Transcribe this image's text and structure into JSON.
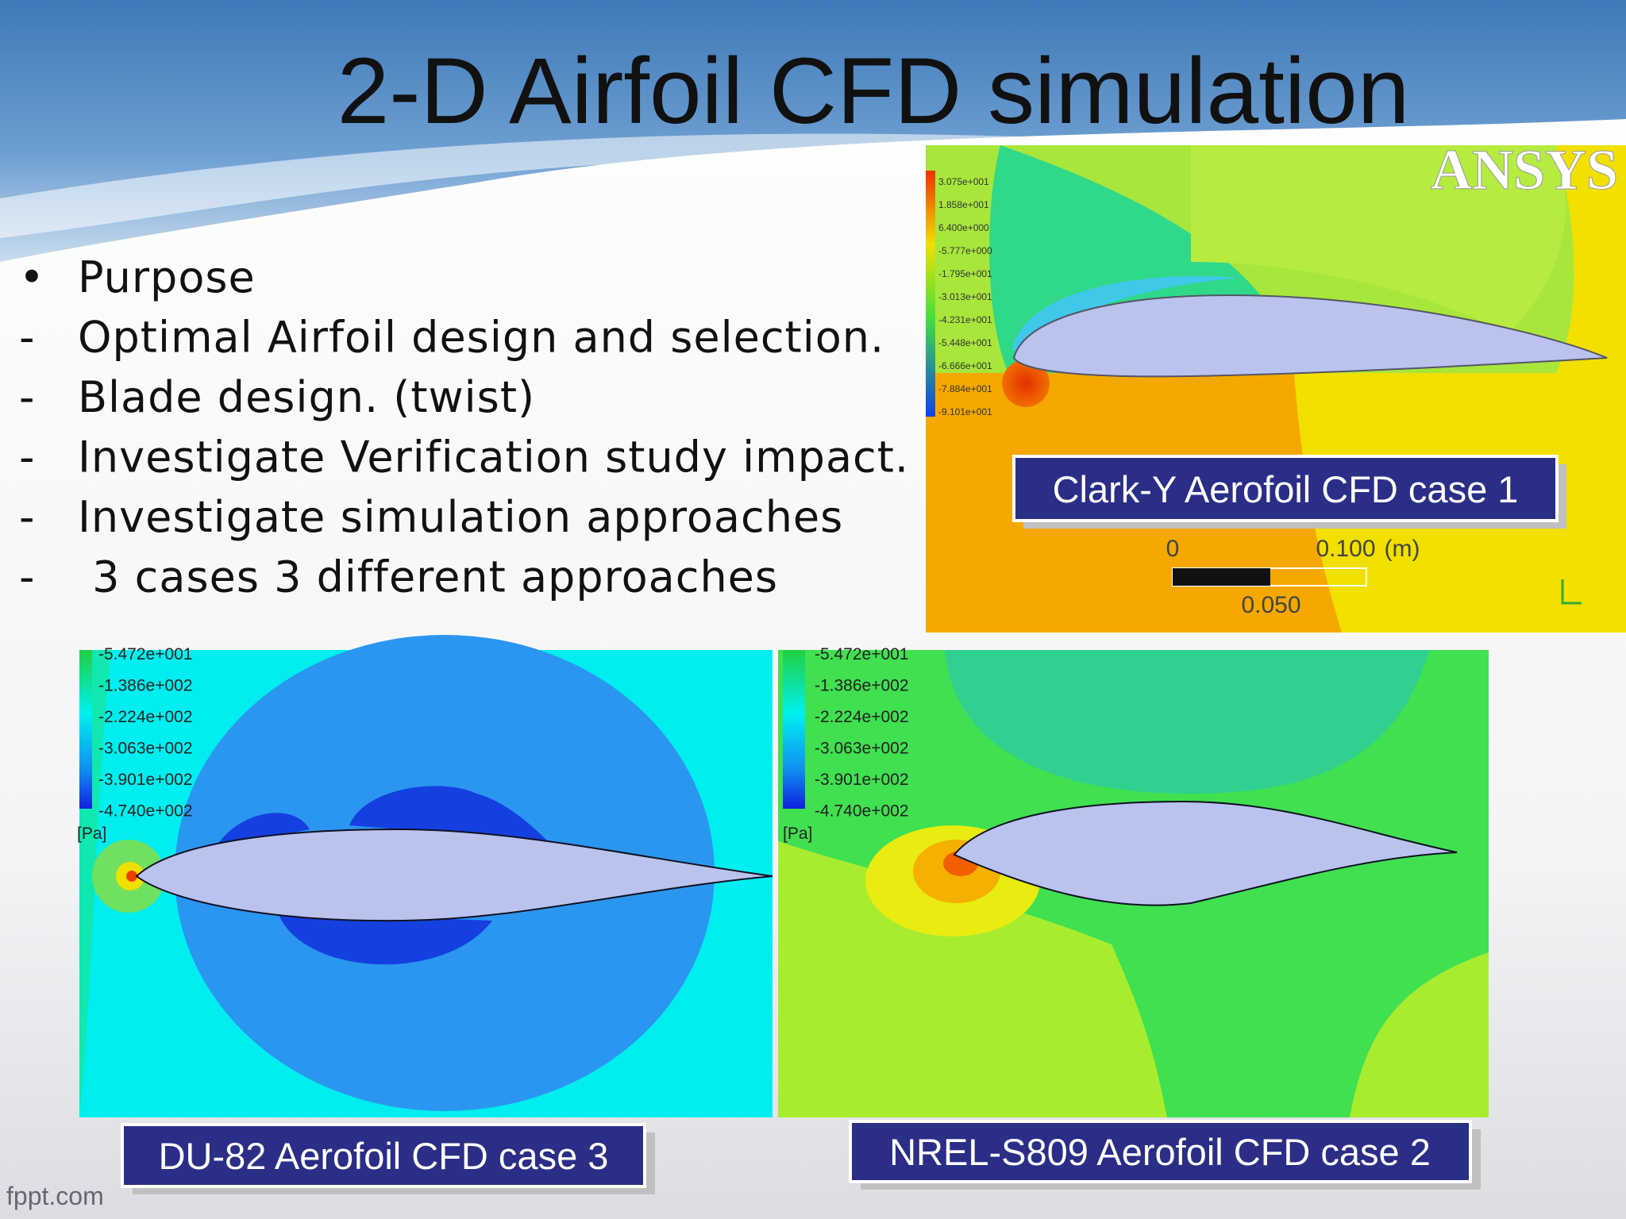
{
  "title": "2-D Airfoil CFD simulation",
  "bullets": [
    {
      "marker": "•",
      "text": "Purpose"
    },
    {
      "marker": "-",
      "text": "Optimal Airfoil design and selection."
    },
    {
      "marker": "-",
      "text": "Blade design. (twist)"
    },
    {
      "marker": "-",
      "text": "Investigate Verification study impact."
    },
    {
      "marker": "-",
      "text": "Investigate simulation approaches"
    },
    {
      "marker": "-",
      "text": " 3 cases 3 different approaches"
    }
  ],
  "panels": [
    {
      "caption": "Clark-Y Aerofoil CFD case 1",
      "logo": "ANSYS",
      "legend": [
        "3.075e+001",
        "1.858e+001",
        "6.400e+000",
        "-5.777e+000",
        "-1.795e+001",
        "-3.013e+001",
        "-4.231e+001",
        "-5.448e+001",
        "-6.666e+001",
        "-7.884e+001",
        "-9.101e+001"
      ],
      "scale_bar": {
        "start": "0",
        "end": "0.100",
        "unit": "(m)",
        "mid": "0.050"
      }
    },
    {
      "caption": "NREL-S809 Aerofoil CFD case 2",
      "legend": [
        "-5.472e+001",
        "-1.386e+002",
        "-2.224e+002",
        "-3.063e+002",
        "-3.901e+002",
        "-4.740e+002"
      ],
      "unit": "[Pa]"
    },
    {
      "caption": "DU-82 Aerofoil CFD case 3",
      "legend": [
        "-5.472e+001",
        "-1.386e+002",
        "-2.224e+002",
        "-3.063e+002",
        "-3.901e+002",
        "-4.740e+002"
      ],
      "unit": "[Pa]"
    }
  ],
  "footer": "fppt.com"
}
